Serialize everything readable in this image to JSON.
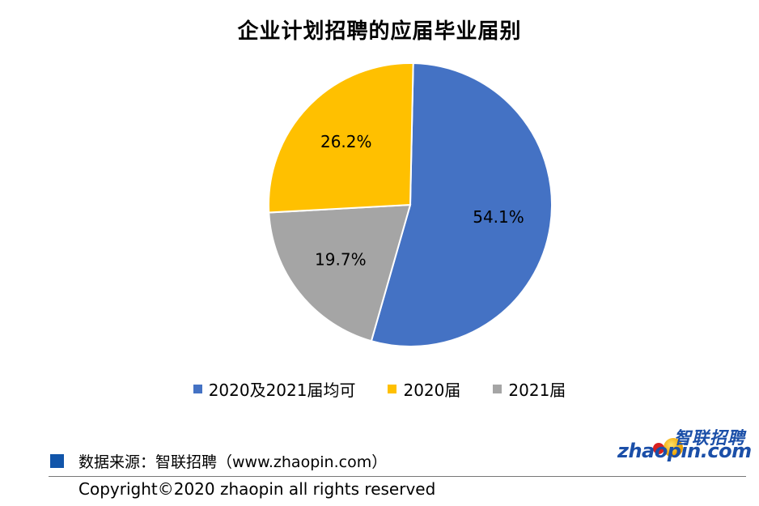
{
  "chart_data": {
    "type": "pie",
    "title": "企业计划招聘的应届毕业届别",
    "categories": [
      "2020及2021届均可",
      "2021届",
      "2020届"
    ],
    "values": [
      54.1,
      19.7,
      26.2
    ],
    "labels": [
      "54.1%",
      "19.7%",
      "26.2%"
    ],
    "colors": [
      "#4472c4",
      "#a5a5a5",
      "#ffc000"
    ],
    "legend": {
      "position": "bottom",
      "entries": [
        {
          "label": "2020及2021届均可",
          "color": "#4472c4"
        },
        {
          "label": "2020届",
          "color": "#ffc000"
        },
        {
          "label": "2021届",
          "color": "#a5a5a5"
        }
      ]
    }
  },
  "footer": {
    "source": "数据来源：智联招聘（www.zhaopin.com）",
    "copyright": "Copyright©2020 zhaopin all rights reserved"
  },
  "logo": {
    "text_cn": "智联招聘",
    "text_en": "zhaopin.com"
  }
}
